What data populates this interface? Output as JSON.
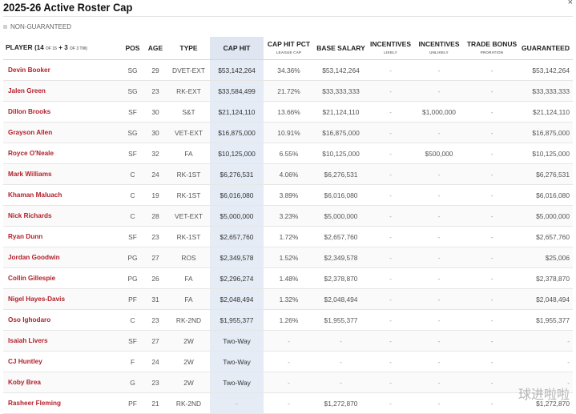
{
  "title": "2025-26 Active Roster Cap",
  "close_glyph": "×",
  "legend_label": "NON-GUARANTEED",
  "header": {
    "player": "PLAYER",
    "count_open": "(14",
    "count_of1": "OF 15",
    "count_plus": "+ 3",
    "count_of2": "OF 3 TW)",
    "pos": "POS",
    "age": "AGE",
    "type": "TYPE",
    "cap_hit": "CAP HIT",
    "cap_hit_pct": "CAP HIT PCT",
    "cap_hit_pct_sub": "LEAGUE CAP",
    "base_salary": "BASE SALARY",
    "incentives_likely": "INCENTIVES",
    "incentives_likely_sub": "LIKELY",
    "incentives_unlikely": "INCENTIVES",
    "incentives_unlikely_sub": "UNLIKELY",
    "trade_bonus": "TRADE BONUS",
    "trade_bonus_sub": "PRORATION",
    "guaranteed": "GUARANTEED"
  },
  "rows": [
    {
      "name": "Devin Booker",
      "pos": "SG",
      "age": "29",
      "type": "DVET-EXT",
      "cap": "$53,142,264",
      "pct": "34.36%",
      "base": "$53,142,264",
      "il": "-",
      "iu": "-",
      "tb": "-",
      "g": "$53,142,264"
    },
    {
      "name": "Jalen Green",
      "pos": "SG",
      "age": "23",
      "type": "RK-EXT",
      "cap": "$33,584,499",
      "pct": "21.72%",
      "base": "$33,333,333",
      "il": "-",
      "iu": "-",
      "tb": "-",
      "g": "$33,333,333"
    },
    {
      "name": "Dillon Brooks",
      "pos": "SF",
      "age": "30",
      "type": "S&T",
      "cap": "$21,124,110",
      "pct": "13.66%",
      "base": "$21,124,110",
      "il": "-",
      "iu": "$1,000,000",
      "tb": "-",
      "g": "$21,124,110"
    },
    {
      "name": "Grayson Allen",
      "pos": "SG",
      "age": "30",
      "type": "VET-EXT",
      "cap": "$16,875,000",
      "pct": "10.91%",
      "base": "$16,875,000",
      "il": "-",
      "iu": "-",
      "tb": "-",
      "g": "$16,875,000"
    },
    {
      "name": "Royce O'Neale",
      "pos": "SF",
      "age": "32",
      "type": "FA",
      "cap": "$10,125,000",
      "pct": "6.55%",
      "base": "$10,125,000",
      "il": "-",
      "iu": "$500,000",
      "tb": "-",
      "g": "$10,125,000"
    },
    {
      "name": "Mark Williams",
      "pos": "C",
      "age": "24",
      "type": "RK-1ST",
      "cap": "$6,276,531",
      "pct": "4.06%",
      "base": "$6,276,531",
      "il": "-",
      "iu": "-",
      "tb": "-",
      "g": "$6,276,531"
    },
    {
      "name": "Khaman Maluach",
      "pos": "C",
      "age": "19",
      "type": "RK-1ST",
      "cap": "$6,016,080",
      "pct": "3.89%",
      "base": "$6,016,080",
      "il": "-",
      "iu": "-",
      "tb": "-",
      "g": "$6,016,080"
    },
    {
      "name": "Nick Richards",
      "pos": "C",
      "age": "28",
      "type": "VET-EXT",
      "cap": "$5,000,000",
      "pct": "3.23%",
      "base": "$5,000,000",
      "il": "-",
      "iu": "-",
      "tb": "-",
      "g": "$5,000,000"
    },
    {
      "name": "Ryan Dunn",
      "pos": "SF",
      "age": "23",
      "type": "RK-1ST",
      "cap": "$2,657,760",
      "pct": "1.72%",
      "base": "$2,657,760",
      "il": "-",
      "iu": "-",
      "tb": "-",
      "g": "$2,657,760"
    },
    {
      "name": "Jordan Goodwin",
      "pos": "PG",
      "age": "27",
      "type": "ROS",
      "cap": "$2,349,578",
      "pct": "1.52%",
      "base": "$2,349,578",
      "il": "-",
      "iu": "-",
      "tb": "-",
      "g": "$25,006"
    },
    {
      "name": "Collin Gillespie",
      "pos": "PG",
      "age": "26",
      "type": "FA",
      "cap": "$2,296,274",
      "pct": "1.48%",
      "base": "$2,378,870",
      "il": "-",
      "iu": "-",
      "tb": "-",
      "g": "$2,378,870"
    },
    {
      "name": "Nigel Hayes-Davis",
      "pos": "PF",
      "age": "31",
      "type": "FA",
      "cap": "$2,048,494",
      "pct": "1.32%",
      "base": "$2,048,494",
      "il": "-",
      "iu": "-",
      "tb": "-",
      "g": "$2,048,494"
    },
    {
      "name": "Oso Ighodaro",
      "pos": "C",
      "age": "23",
      "type": "RK-2ND",
      "cap": "$1,955,377",
      "pct": "1.26%",
      "base": "$1,955,377",
      "il": "-",
      "iu": "-",
      "tb": "-",
      "g": "$1,955,377"
    },
    {
      "name": "Isaiah Livers",
      "pos": "SF",
      "age": "27",
      "type": "2W",
      "cap": "Two-Way",
      "pct": "-",
      "base": "-",
      "il": "-",
      "iu": "-",
      "tb": "-",
      "g": "-"
    },
    {
      "name": "CJ Huntley",
      "pos": "F",
      "age": "24",
      "type": "2W",
      "cap": "Two-Way",
      "pct": "-",
      "base": "-",
      "il": "-",
      "iu": "-",
      "tb": "-",
      "g": "-"
    },
    {
      "name": "Koby Brea",
      "pos": "G",
      "age": "23",
      "type": "2W",
      "cap": "Two-Way",
      "pct": "-",
      "base": "-",
      "il": "-",
      "iu": "-",
      "tb": "-",
      "g": "-"
    },
    {
      "name": "Rasheer Fleming",
      "pos": "PF",
      "age": "21",
      "type": "RK-2ND",
      "cap": "-",
      "pct": "-",
      "base": "$1,272,870",
      "il": "-",
      "iu": "-",
      "tb": "-",
      "g": "$1,272,870"
    }
  ],
  "watermark": "球进啦啦"
}
